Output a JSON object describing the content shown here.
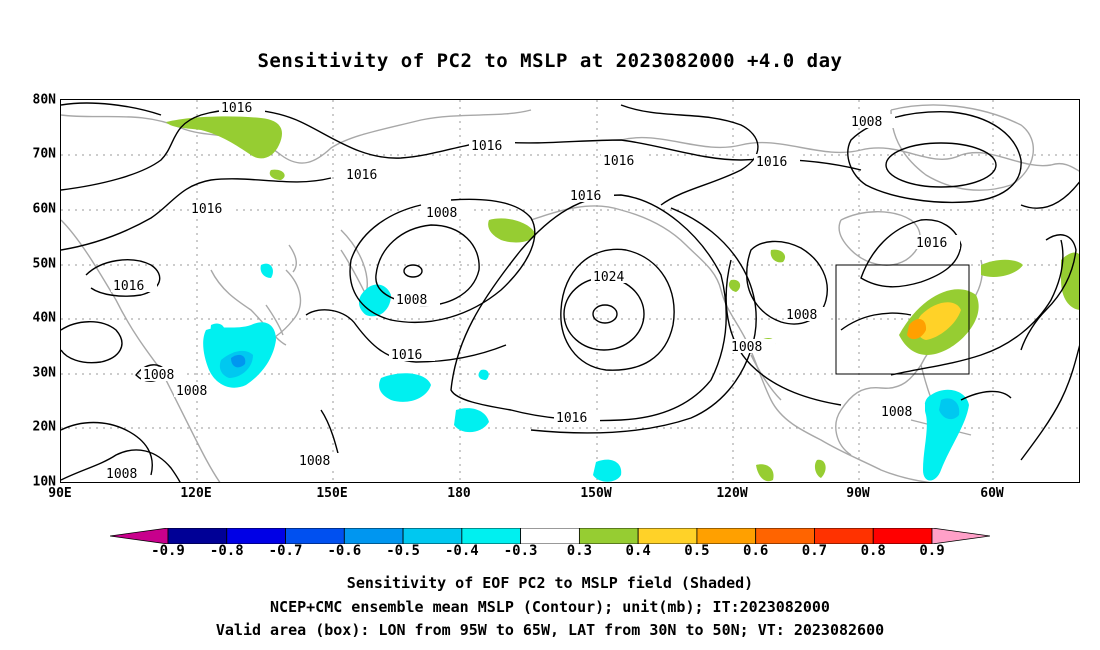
{
  "title": "Sensitivity of PC2 to MSLP at 2023082000 +4.0 day",
  "map": {
    "lat_labels": [
      "80N",
      "70N",
      "60N",
      "50N",
      "40N",
      "30N",
      "20N",
      "10N"
    ],
    "lon_labels": [
      "90E",
      "120E",
      "150E",
      "180",
      "150W",
      "120W",
      "90W",
      "60W"
    ],
    "contour_labels": {
      "c1": "1016",
      "c2": "1016",
      "c3": "1016",
      "c4": "1016",
      "c5": "1016",
      "c6": "1016",
      "c7": "1016",
      "c8": "1016",
      "c9": "1016",
      "c10": "1016",
      "c11": "1016",
      "c12": "1016",
      "c13": "1008",
      "c14": "1008",
      "c15": "1008",
      "c16": "1008",
      "c17": "1008",
      "c18": "1008",
      "c19": "1008",
      "c20": "1008",
      "c21": "1008",
      "c22": "1008",
      "c23": "1024"
    },
    "valid_area_box": {
      "lon_from": "95W",
      "lon_to": "65W",
      "lat_from": "30N",
      "lat_to": "50N"
    }
  },
  "colorbar": {
    "labels": [
      "-0.9",
      "-0.8",
      "-0.7",
      "-0.6",
      "-0.5",
      "-0.4",
      "-0.3",
      "0.3",
      "0.4",
      "0.5",
      "0.6",
      "0.7",
      "0.8",
      "0.9"
    ],
    "colors": [
      "#c8008c",
      "#000096",
      "#0000e6",
      "#0050f0",
      "#0096f0",
      "#00c8f0",
      "#00f0f0",
      "#ffffff",
      "#96cd32",
      "#ffd228",
      "#ffa000",
      "#ff6400",
      "#ff3200",
      "#ff0000",
      "#ffa0c8"
    ]
  },
  "captions": {
    "line1": "Sensitivity of EOF PC2 to MSLP field (Shaded)",
    "line2": "NCEP+CMC ensemble mean MSLP (Contour); unit(mb); IT:2023082000",
    "line3": "Valid area (box): LON from 95W to 65W, LAT from 30N to 50N; VT: 2023082600"
  }
}
